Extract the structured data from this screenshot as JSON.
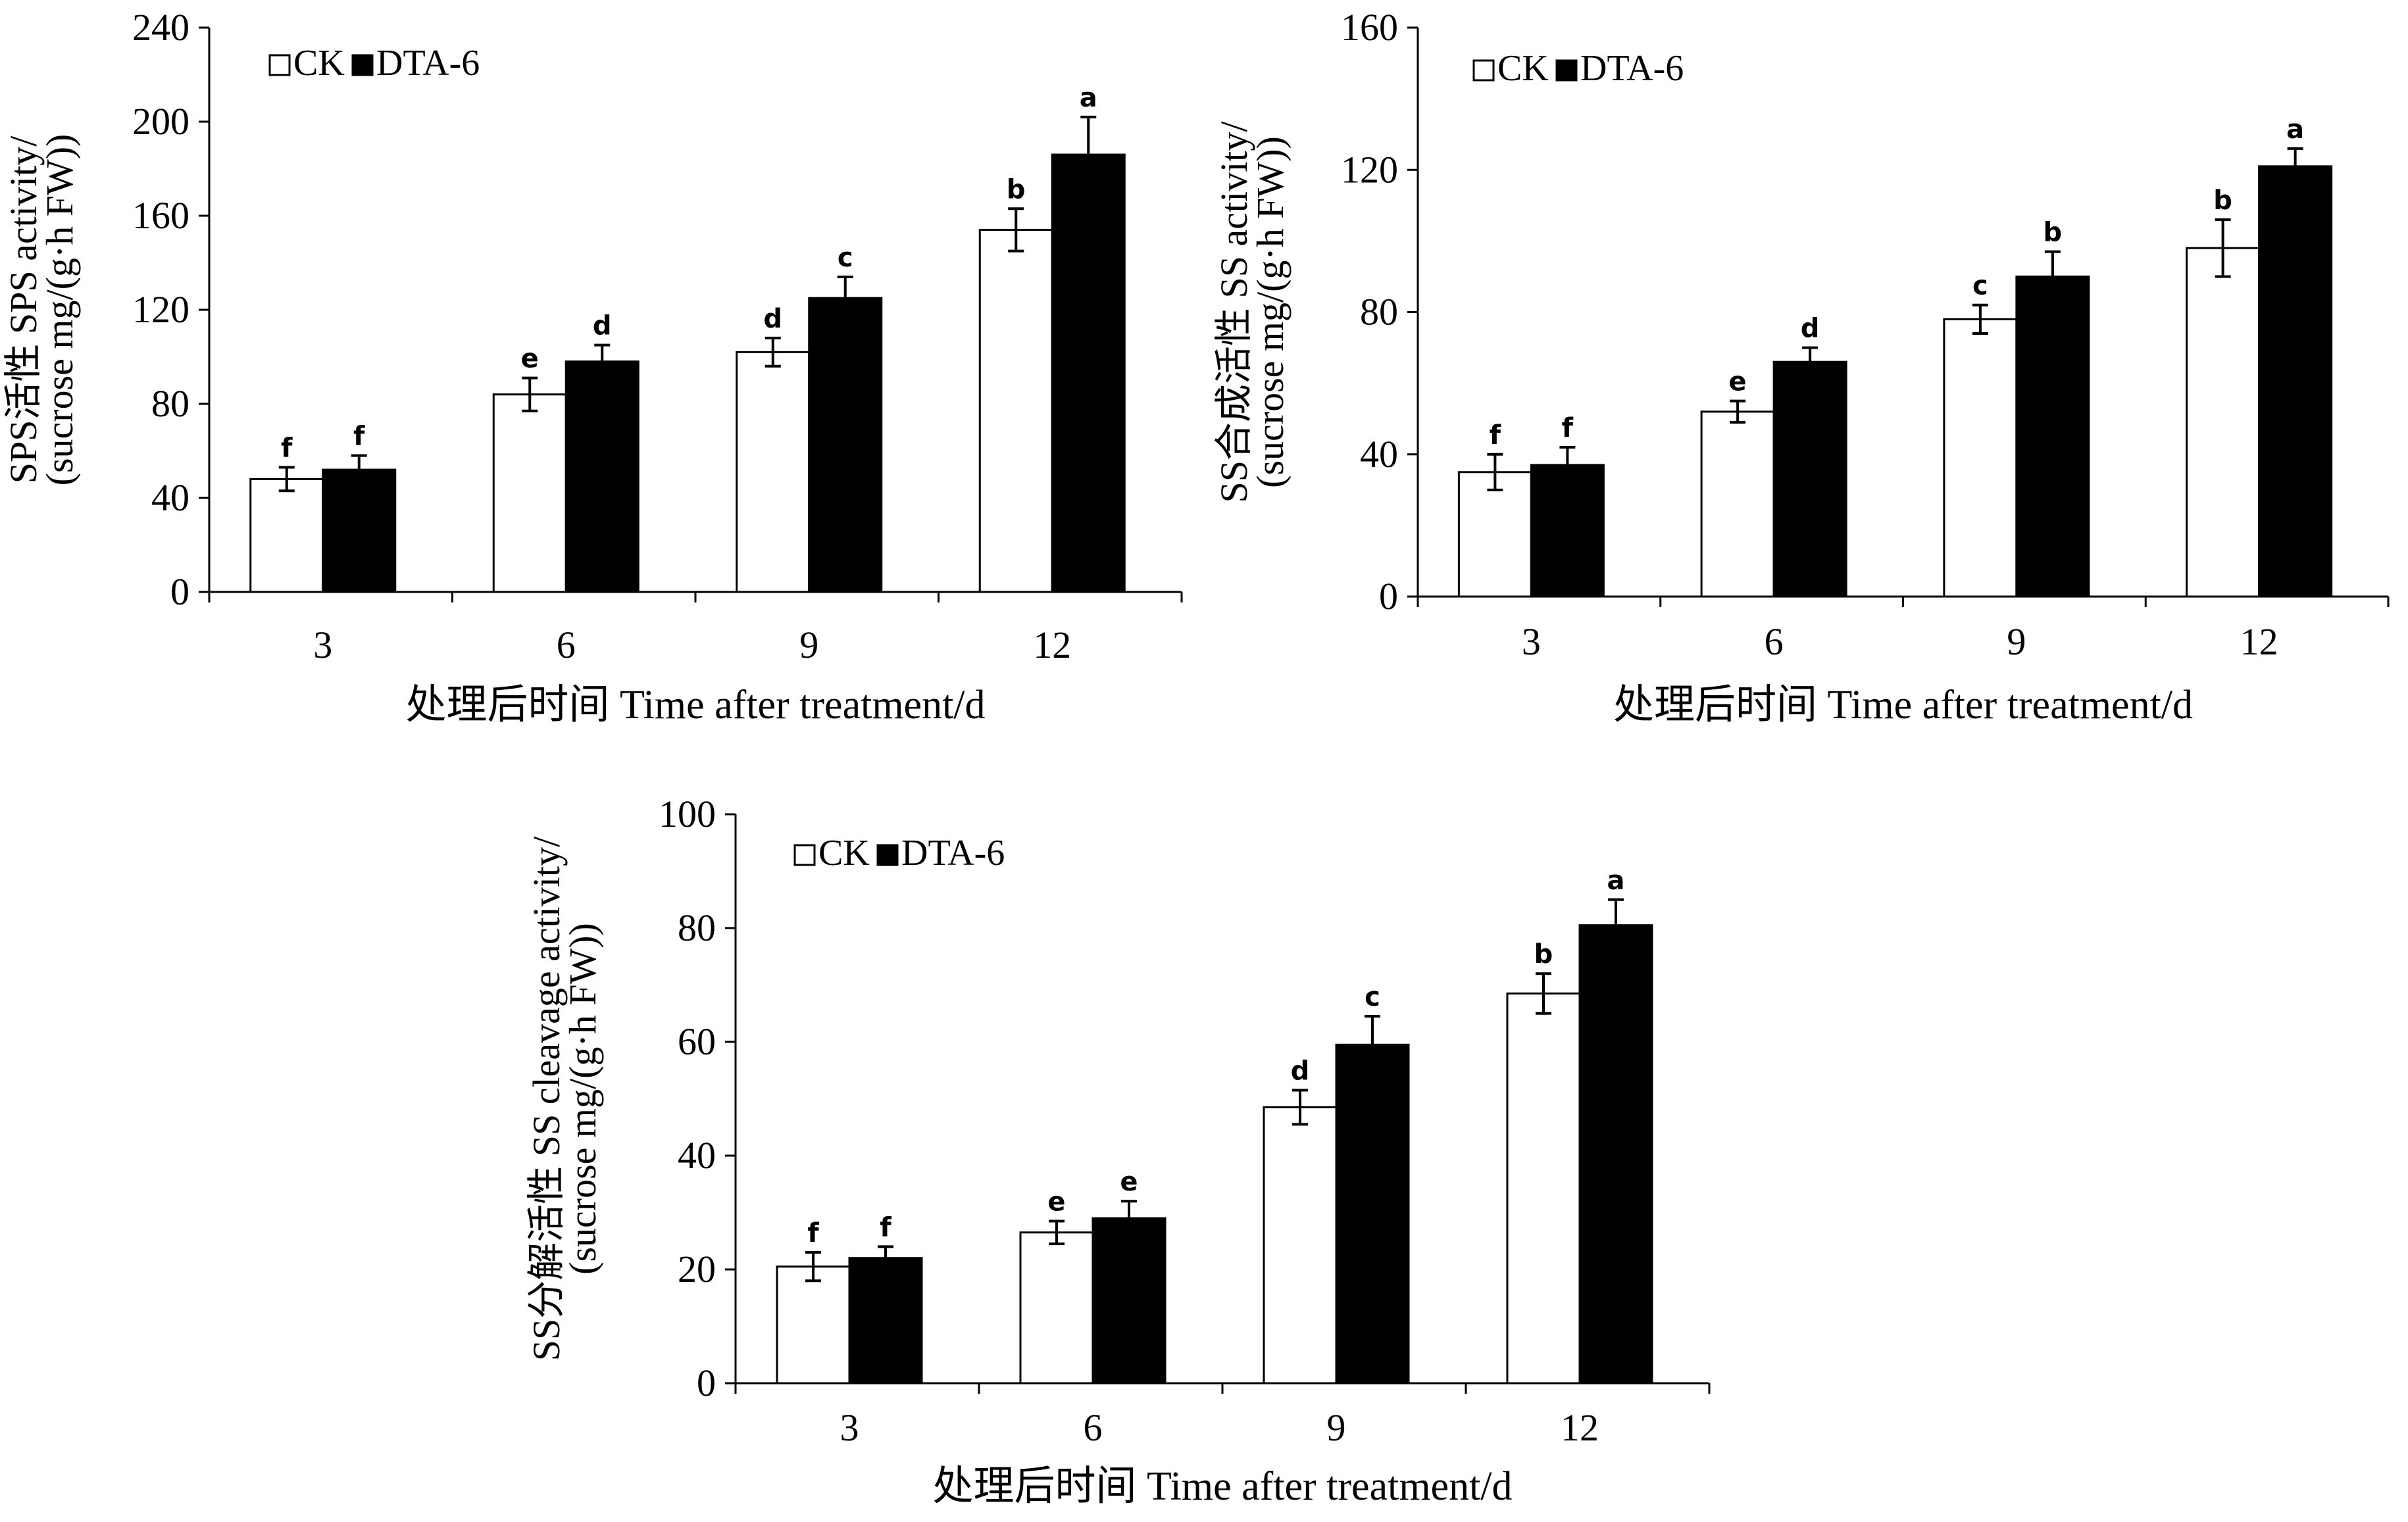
{
  "chart_data": [
    {
      "type": "bar",
      "categories": [
        "3",
        "6",
        "9",
        "12"
      ],
      "series": [
        {
          "name": "CK",
          "fill": "#ffffff",
          "values": [
            48,
            84,
            102,
            154
          ],
          "errors": [
            5,
            7,
            6,
            9
          ],
          "labels": [
            "f",
            "e",
            "d",
            "b"
          ]
        },
        {
          "name": "DTA-6",
          "fill": "#000000",
          "values": [
            52,
            98,
            125,
            186
          ],
          "errors": [
            6,
            7,
            9,
            16
          ],
          "labels": [
            "f",
            "d",
            "c",
            "a"
          ]
        }
      ],
      "ylim": [
        0,
        240
      ],
      "yticks": [
        "0",
        "40",
        "80",
        "120",
        "160",
        "200",
        "240"
      ],
      "xlabel": "处理后时间 Time after treatment/d",
      "ylabel_lines": [
        "SPS活性  SPS activity/",
        "(sucrose mg/(g·h FW))"
      ],
      "legend": {
        "position": "top-left",
        "items": [
          "CK",
          "DTA-6"
        ]
      }
    },
    {
      "type": "bar",
      "categories": [
        "3",
        "6",
        "9",
        "12"
      ],
      "series": [
        {
          "name": "CK",
          "fill": "#ffffff",
          "values": [
            35,
            52,
            78,
            98
          ],
          "errors": [
            5,
            3,
            4,
            8
          ],
          "labels": [
            "f",
            "e",
            "c",
            "b"
          ]
        },
        {
          "name": "DTA-6",
          "fill": "#000000",
          "values": [
            37,
            66,
            90,
            121
          ],
          "errors": [
            5,
            4,
            7,
            5
          ],
          "labels": [
            "f",
            "d",
            "b",
            "a"
          ]
        }
      ],
      "ylim": [
        0,
        160
      ],
      "yticks": [
        "0",
        "40",
        "80",
        "120",
        "160"
      ],
      "xlabel": "处理后时间 Time after treatment/d",
      "ylabel_lines": [
        "SS合成活性  SS activity/",
        "(sucrose mg/(g·h FW))"
      ],
      "legend": {
        "position": "top-left",
        "items": [
          "CK",
          "DTA-6"
        ]
      }
    },
    {
      "type": "bar",
      "categories": [
        "3",
        "6",
        "9",
        "12"
      ],
      "series": [
        {
          "name": "CK",
          "fill": "#ffffff",
          "values": [
            20.5,
            26.5,
            48.5,
            68.5
          ],
          "errors": [
            2.5,
            2,
            3,
            3.5
          ],
          "labels": [
            "f",
            "e",
            "d",
            "b"
          ]
        },
        {
          "name": "DTA-6",
          "fill": "#000000",
          "values": [
            22,
            29,
            59.5,
            80.5
          ],
          "errors": [
            2,
            3,
            5,
            4.5
          ],
          "labels": [
            "f",
            "e",
            "c",
            "a"
          ]
        }
      ],
      "ylim": [
        0,
        100
      ],
      "yticks": [
        "0",
        "20",
        "40",
        "60",
        "80",
        "100"
      ],
      "xlabel": "处理后时间 Time after treatment/d",
      "ylabel_lines": [
        "SS分解活性  SS cleavage activity/",
        "(sucrose mg/(g·h FW))"
      ],
      "legend": {
        "position": "top-left",
        "items": [
          "CK",
          "DTA-6"
        ]
      }
    }
  ]
}
